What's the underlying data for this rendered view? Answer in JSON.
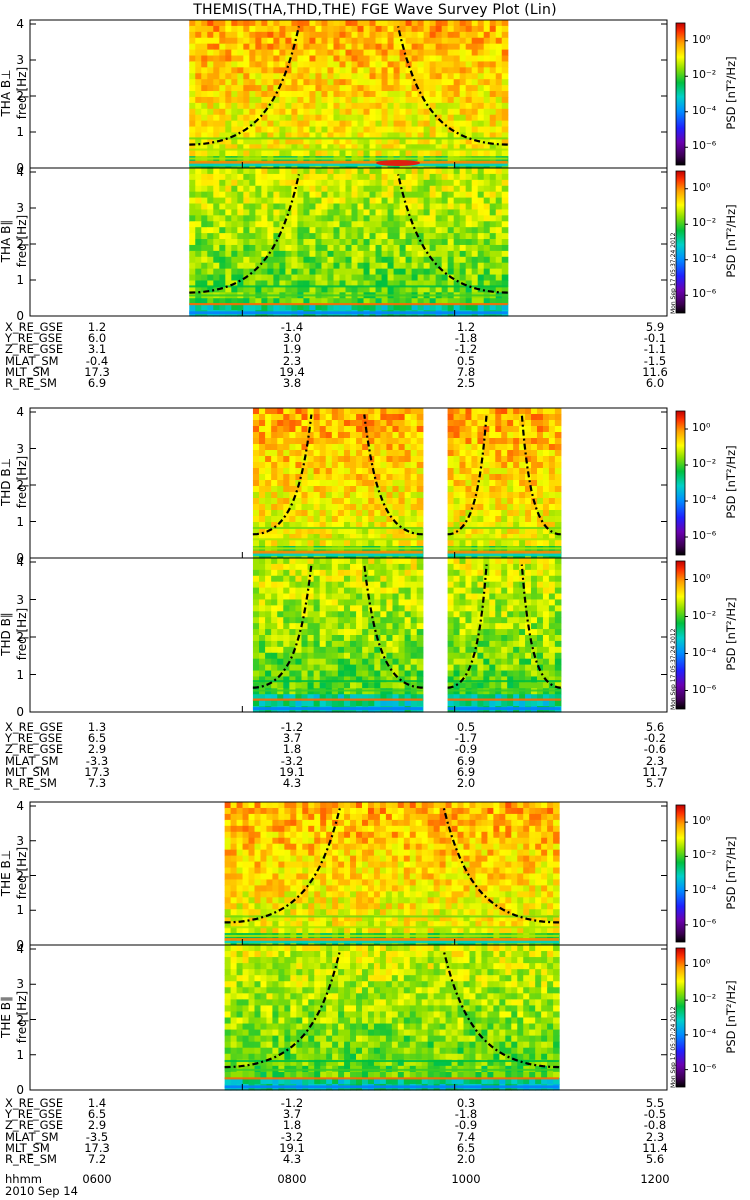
{
  "title": "THEMIS(THA,THD,THE) FGE Wave Survey Plot (Lin)",
  "colors": {
    "spectrogram_bg": "#f0e040",
    "dash_line": "#000000",
    "low_band": "#22c9c0",
    "peak": "#e02010"
  },
  "chart_data": {
    "type": "heatmap",
    "colorbar": {
      "label": "PSD [nT²/Hz]",
      "tick_labels": [
        "10⁰",
        "10⁻²",
        "10⁻⁴",
        "10⁻⁶"
      ],
      "range_exponents": [
        -7,
        1
      ]
    },
    "panels": [
      {
        "probe": "THA",
        "component": "B⊥",
        "ylabel": "THA B⊥",
        "ylabel2": "freq [Hz]",
        "ylim": [
          0,
          4
        ],
        "yticks": [
          "0",
          "1",
          "2",
          "3",
          "4"
        ],
        "data_span_minutes": [
          450,
          630
        ],
        "gaps_minutes": [],
        "strong_peak": true,
        "stamp": ""
      },
      {
        "probe": "THA",
        "component": "B∥",
        "ylabel": "THA B∥",
        "ylabel2": "freq [Hz]",
        "ylim": [
          0,
          4
        ],
        "yticks": [
          "0",
          "1",
          "2",
          "3",
          "4"
        ],
        "data_span_minutes": [
          450,
          630
        ],
        "gaps_minutes": [],
        "strong_peak": false,
        "stamp": "Mon Sep 17 05:37:24 2012"
      },
      {
        "probe": "THD",
        "component": "B⊥",
        "ylabel": "THD B⊥",
        "ylabel2": "freq [Hz]",
        "ylim": [
          0,
          4
        ],
        "yticks": [
          "0",
          "1",
          "2",
          "3",
          "4"
        ],
        "data_span_minutes": [
          486,
          660
        ],
        "gaps_minutes": [
          [
            582,
            596
          ]
        ],
        "strong_peak": false,
        "stamp": ""
      },
      {
        "probe": "THD",
        "component": "B∥",
        "ylabel": "THD B∥",
        "ylabel2": "freq [Hz]",
        "ylim": [
          0,
          4
        ],
        "yticks": [
          "0",
          "1",
          "2",
          "3",
          "4"
        ],
        "data_span_minutes": [
          486,
          660
        ],
        "gaps_minutes": [
          [
            582,
            596
          ]
        ],
        "strong_peak": false,
        "stamp": "Mon Sep 17 05:37:24 2012"
      },
      {
        "probe": "THE",
        "component": "B⊥",
        "ylabel": "THE B⊥",
        "ylabel2": "freq [Hz]",
        "ylim": [
          0,
          4
        ],
        "yticks": [
          "0",
          "1",
          "2",
          "3",
          "4"
        ],
        "data_span_minutes": [
          470,
          659
        ],
        "gaps_minutes": [],
        "strong_peak": false,
        "stamp": ""
      },
      {
        "probe": "THE",
        "component": "B∥",
        "ylabel": "THE B∥",
        "ylabel2": "freq [Hz]",
        "ylim": [
          0,
          4
        ],
        "yticks": [
          "0",
          "1",
          "2",
          "3",
          "4"
        ],
        "data_span_minutes": [
          470,
          659
        ],
        "gaps_minutes": [],
        "strong_peak": false,
        "stamp": "Mon Sep 17 05:37:24 2012"
      }
    ],
    "x_axis": {
      "label": "hhmm",
      "date": "2010 Sep 14",
      "range_hhmm": [
        "0600",
        "1200"
      ],
      "tick_labels": [
        "0600",
        "0800",
        "1000",
        "1200"
      ]
    }
  },
  "ephemeris": [
    {
      "probe": "THA",
      "rows": [
        {
          "label": "X_RE_GSE",
          "values": [
            "1.2",
            "-1.4",
            "1.2",
            "5.9"
          ]
        },
        {
          "label": "Y_RE_GSE",
          "values": [
            "6.0",
            "3.0",
            "-1.8",
            "-0.1"
          ]
        },
        {
          "label": "Z_RE_GSE",
          "values": [
            "3.1",
            "1.9",
            "-1.2",
            "-1.1"
          ]
        },
        {
          "label": "MLAT_SM",
          "values": [
            "-0.4",
            "2.3",
            "0.5",
            "-1.5"
          ]
        },
        {
          "label": "MLT_SM",
          "values": [
            "17.3",
            "19.4",
            "7.8",
            "11.6"
          ]
        },
        {
          "label": "R_RE_SM",
          "values": [
            "6.9",
            "3.8",
            "2.5",
            "6.0"
          ]
        }
      ]
    },
    {
      "probe": "THD",
      "rows": [
        {
          "label": "X_RE_GSE",
          "values": [
            "1.3",
            "-1.2",
            "0.5",
            "5.6"
          ]
        },
        {
          "label": "Y_RE_GSE",
          "values": [
            "6.5",
            "3.7",
            "-1.7",
            "-0.2"
          ]
        },
        {
          "label": "Z_RE_GSE",
          "values": [
            "2.9",
            "1.8",
            "-0.9",
            "-0.6"
          ]
        },
        {
          "label": "MLAT_SM",
          "values": [
            "-3.3",
            "-3.2",
            "6.9",
            "2.3"
          ]
        },
        {
          "label": "MLT_SM",
          "values": [
            "17.3",
            "19.1",
            "6.9",
            "11.7"
          ]
        },
        {
          "label": "R_RE_SM",
          "values": [
            "7.3",
            "4.3",
            "2.0",
            "5.7"
          ]
        }
      ]
    },
    {
      "probe": "THE",
      "rows": [
        {
          "label": "X_RE_GSE",
          "values": [
            "1.4",
            "-1.2",
            "0.3",
            "5.5"
          ]
        },
        {
          "label": "Y_RE_GSE",
          "values": [
            "6.5",
            "3.7",
            "-1.8",
            "-0.5"
          ]
        },
        {
          "label": "Z_RE_GSE",
          "values": [
            "2.9",
            "1.8",
            "-0.9",
            "-0.8"
          ]
        },
        {
          "label": "MLAT_SM",
          "values": [
            "-3.5",
            "-3.2",
            "7.4",
            "2.3"
          ]
        },
        {
          "label": "MLT_SM",
          "values": [
            "17.3",
            "19.1",
            "6.5",
            "11.4"
          ]
        },
        {
          "label": "R_RE_SM",
          "values": [
            "7.2",
            "4.3",
            "2.0",
            "5.6"
          ]
        }
      ]
    }
  ]
}
